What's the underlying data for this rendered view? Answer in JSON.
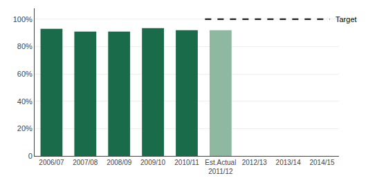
{
  "chart_data": {
    "type": "bar",
    "categories": [
      "2006/07",
      "2007/08",
      "2008/09",
      "2009/10",
      "2010/11",
      "Est.Actual\n2011/12",
      "2012/13",
      "2013/14",
      "2014/15"
    ],
    "values": [
      0.93,
      0.91,
      0.91,
      0.935,
      0.92,
      0.92,
      null,
      null,
      null
    ],
    "colors": [
      "#1a6b4a",
      "#1a6b4a",
      "#1a6b4a",
      "#1a6b4a",
      "#1a6b4a",
      "#8fb8a0",
      null,
      null,
      null
    ],
    "ylim": [
      0,
      1.08
    ],
    "yticks": [
      0,
      {
        "value": 0.2,
        "label": "20%"
      },
      {
        "value": 0.4,
        "label": "40%"
      },
      {
        "value": 0.6,
        "label": "60%"
      },
      {
        "value": 0.8,
        "label": "80%"
      },
      {
        "value": 1.0,
        "label": "100%"
      }
    ],
    "grid": true,
    "annotations": [
      {
        "text": "Target",
        "y": 1.0,
        "color": "#000000",
        "line_style": "dashed"
      }
    ]
  }
}
